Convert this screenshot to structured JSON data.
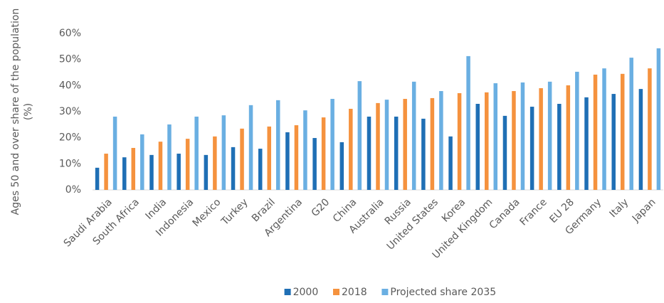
{
  "chart_data": {
    "type": "bar",
    "y_label": [
      "Ages 50 and over share of the population",
      "(%)"
    ],
    "categories": [
      "Saudi Arabia",
      "South Africa",
      "India",
      "Indonesia",
      "Mexico",
      "Turkey",
      "Brazil",
      "Argentina",
      "G20",
      "China",
      "Australia",
      "Russia",
      "United States",
      "Korea",
      "United Kingdom",
      "Canada",
      "France",
      "EU 28",
      "Germany",
      "Italy",
      "Japan"
    ],
    "series": [
      {
        "name": "2000",
        "color": "#1f6fb5",
        "values": [
          8.5,
          12.5,
          13.4,
          13.9,
          13.4,
          16.4,
          15.8,
          22.1,
          19.9,
          18.3,
          28.1,
          28.1,
          27.3,
          20.5,
          33.0,
          28.4,
          31.9,
          33.0,
          35.5,
          36.8,
          38.7
        ]
      },
      {
        "name": "2018",
        "color": "#f5923e",
        "values": [
          13.9,
          16.1,
          18.5,
          19.6,
          20.5,
          23.5,
          24.3,
          24.8,
          27.8,
          31.1,
          33.3,
          34.9,
          35.2,
          37.1,
          37.4,
          37.9,
          39.0,
          40.1,
          44.2,
          44.5,
          46.6
        ]
      },
      {
        "name": "Projected share 2035",
        "color": "#6aafe2",
        "values": [
          28.1,
          21.3,
          25.1,
          28.1,
          28.6,
          32.5,
          34.4,
          30.5,
          34.9,
          41.7,
          34.6,
          41.5,
          37.9,
          51.3,
          40.9,
          41.2,
          41.5,
          45.3,
          46.6,
          50.7,
          54.3
        ]
      }
    ],
    "ylim": [
      0,
      60
    ],
    "yticks": [
      {
        "value": 0,
        "label": "0%"
      },
      {
        "value": 10,
        "label": "10%"
      },
      {
        "value": 20,
        "label": "20%"
      },
      {
        "value": 30,
        "label": "30%"
      },
      {
        "value": 40,
        "label": "40%"
      },
      {
        "value": 50,
        "label": "50%"
      },
      {
        "value": 60,
        "label": "60%"
      }
    ],
    "grid": false,
    "legend": "bottom"
  }
}
